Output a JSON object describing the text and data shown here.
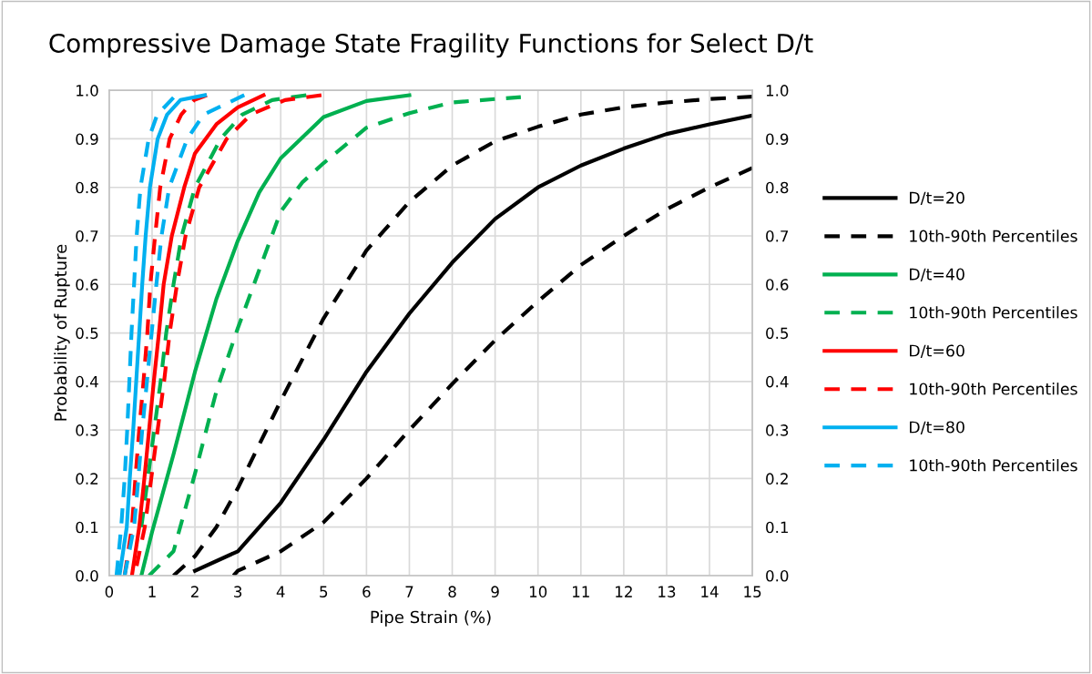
{
  "chart_data": {
    "type": "line",
    "title": "Compressive Damage State Fragility Functions for Select D/t",
    "xlabel": "Pipe Strain (%)",
    "ylabel": "Probability of Rupture",
    "xlim": [
      0,
      15
    ],
    "xticks": [
      0,
      1,
      2,
      3,
      4,
      5,
      6,
      7,
      8,
      9,
      10,
      11,
      12,
      13,
      14,
      15
    ],
    "ylim": [
      0,
      1
    ],
    "yticks": [
      {
        "value": 0,
        "label": "0.0"
      },
      {
        "value": 0.1,
        "label": "0.1"
      },
      {
        "value": 0.2,
        "label": "0.2"
      },
      {
        "value": 0.3,
        "label": "0.3"
      },
      {
        "value": 0.4,
        "label": "0.4"
      },
      {
        "value": 0.5,
        "label": "0.5"
      },
      {
        "value": 0.6,
        "label": "0.6"
      },
      {
        "value": 0.7,
        "label": "0.7"
      },
      {
        "value": 0.8,
        "label": "0.8"
      },
      {
        "value": 0.9,
        "label": "0.9"
      },
      {
        "value": 1,
        "label": "1.0"
      }
    ],
    "y2lim": [
      0,
      1
    ],
    "y2ticks": [
      {
        "value": 0,
        "label": "0.0"
      },
      {
        "value": 0.1,
        "label": "0.1"
      },
      {
        "value": 0.2,
        "label": "0.2"
      },
      {
        "value": 0.3,
        "label": "0.3"
      },
      {
        "value": 0.4,
        "label": "0.4"
      },
      {
        "value": 0.5,
        "label": "0.5"
      },
      {
        "value": 0.6,
        "label": "0.6"
      },
      {
        "value": 0.7,
        "label": "0.7"
      },
      {
        "value": 0.8,
        "label": "0.8"
      },
      {
        "value": 0.9,
        "label": "0.9"
      },
      {
        "value": 1,
        "label": "1.0"
      }
    ],
    "grid": true,
    "legend": "right",
    "marker": "none",
    "series": [
      {
        "name": "D/t=20",
        "color": "#000000",
        "line_style": "solid",
        "x": [
          2,
          3,
          4,
          5,
          6,
          7,
          8,
          9,
          10,
          11,
          12,
          13,
          14,
          15
        ],
        "values": [
          0.01,
          0.05,
          0.15,
          0.28,
          0.42,
          0.54,
          0.645,
          0.735,
          0.8,
          0.845,
          0.88,
          0.91,
          0.93,
          0.948
        ]
      },
      {
        "name": "10th-90th Percentiles",
        "color": "#000000",
        "line_style": "dashed",
        "x": [
          1.5,
          2,
          2.5,
          3,
          3.5,
          4,
          5,
          6,
          7,
          8,
          9,
          10,
          11,
          12,
          13,
          14,
          15
        ],
        "values": [
          0,
          0.04,
          0.1,
          0.18,
          0.27,
          0.36,
          0.53,
          0.67,
          0.77,
          0.845,
          0.895,
          0.925,
          0.95,
          0.965,
          0.975,
          0.982,
          0.987
        ]
      },
      {
        "color": "#000000",
        "line_style": "dashed",
        "x": [
          2.9,
          3,
          4,
          5,
          6,
          7,
          8,
          9,
          10,
          11,
          12,
          13,
          14,
          15
        ],
        "values": [
          0,
          0.01,
          0.05,
          0.11,
          0.2,
          0.3,
          0.395,
          0.485,
          0.565,
          0.64,
          0.7,
          0.755,
          0.8,
          0.84
        ]
      },
      {
        "name": "D/t=40",
        "color": "#00b050",
        "line_style": "solid",
        "x": [
          0.75,
          1,
          1.5,
          2,
          2.5,
          3,
          3.5,
          4,
          5,
          6,
          7
        ],
        "values": [
          0,
          0.09,
          0.25,
          0.42,
          0.57,
          0.69,
          0.79,
          0.86,
          0.945,
          0.978,
          0.99
        ]
      },
      {
        "name": "10th-90th Percentiles",
        "color": "#00b050",
        "line_style": "dashed",
        "x": [
          0.93,
          1.5,
          2,
          2.5,
          3,
          3.5,
          4,
          4.5,
          5,
          6,
          7,
          8,
          9,
          9.6
        ],
        "values": [
          0,
          0.05,
          0.21,
          0.38,
          0.51,
          0.63,
          0.75,
          0.81,
          0.85,
          0.923,
          0.953,
          0.975,
          0.982,
          0.986
        ]
      },
      {
        "color": "#00b050",
        "line_style": "dashed",
        "x": [
          0.75,
          0.9,
          1.05,
          1.2,
          1.33,
          1.5,
          1.69,
          2.0,
          2.6,
          3.1,
          3.8,
          4.6
        ],
        "values": [
          0.1,
          0.2,
          0.3,
          0.4,
          0.5,
          0.6,
          0.7,
          0.8,
          0.9,
          0.95,
          0.98,
          0.99
        ]
      },
      {
        "name": "D/t=60",
        "color": "#ff0000",
        "line_style": "solid",
        "x": [
          0.53,
          0.7,
          0.82,
          0.93,
          1.04,
          1.16,
          1.27,
          1.46,
          1.75,
          2,
          2.5,
          3,
          3.6
        ],
        "values": [
          0,
          0.1,
          0.2,
          0.3,
          0.4,
          0.5,
          0.6,
          0.7,
          0.8,
          0.87,
          0.93,
          0.965,
          0.99
        ]
      },
      {
        "name": "10th-90th Percentiles",
        "color": "#ff0000",
        "line_style": "dashed",
        "x": [
          0.36,
          0.53,
          0.61,
          0.7,
          0.8,
          0.89,
          0.96,
          1.07,
          1.19,
          1.41,
          1.68,
          1.98,
          2.28
        ],
        "values": [
          0,
          0.1,
          0.2,
          0.3,
          0.4,
          0.5,
          0.6,
          0.7,
          0.8,
          0.9,
          0.95,
          0.98,
          0.99
        ]
      },
      {
        "color": "#ff0000",
        "line_style": "dashed",
        "x": [
          0.64,
          0.83,
          0.98,
          1.13,
          1.28,
          1.41,
          1.58,
          1.78,
          2.1,
          2.74,
          3.3,
          4.1,
          4.95
        ],
        "values": [
          0.02,
          0.1,
          0.2,
          0.3,
          0.4,
          0.5,
          0.6,
          0.7,
          0.8,
          0.9,
          0.95,
          0.98,
          0.99
        ]
      },
      {
        "name": "D/t=80",
        "color": "#00b0f0",
        "line_style": "solid",
        "x": [
          0.24,
          0.41,
          0.48,
          0.56,
          0.63,
          0.7,
          0.77,
          0.85,
          0.95,
          1.13,
          1.35,
          1.66,
          2.23
        ],
        "values": [
          0,
          0.1,
          0.2,
          0.3,
          0.4,
          0.5,
          0.6,
          0.7,
          0.8,
          0.9,
          0.95,
          0.98,
          0.99
        ]
      },
      {
        "name": "10th-90th Percentiles",
        "color": "#00b0f0",
        "line_style": "dashed",
        "x": [
          0.17,
          0.28,
          0.36,
          0.42,
          0.47,
          0.52,
          0.58,
          0.64,
          0.73,
          0.92,
          1.12,
          1.5
        ],
        "values": [
          0,
          0.1,
          0.2,
          0.3,
          0.4,
          0.5,
          0.6,
          0.7,
          0.8,
          0.9,
          0.95,
          0.985
        ]
      },
      {
        "color": "#00b0f0",
        "line_style": "dashed",
        "x": [
          0.36,
          0.58,
          0.68,
          0.77,
          0.88,
          0.99,
          1.1,
          1.22,
          1.4,
          1.82,
          2.2,
          3.15
        ],
        "values": [
          0,
          0.1,
          0.2,
          0.3,
          0.4,
          0.5,
          0.6,
          0.7,
          0.8,
          0.9,
          0.95,
          0.99
        ]
      }
    ]
  }
}
